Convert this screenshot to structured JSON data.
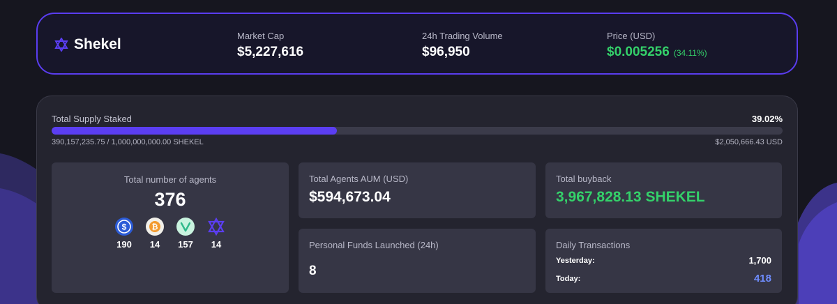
{
  "header": {
    "brand_name": "Shekel",
    "market_cap": {
      "label": "Market Cap",
      "value": "$5,227,616"
    },
    "volume": {
      "label": "24h Trading Volume",
      "value": "$96,950"
    },
    "price": {
      "label": "Price (USD)",
      "value": "$0.005256",
      "change": "(34.11%)"
    }
  },
  "supply": {
    "label": "Total Supply Staked",
    "percent_text": "39.02%",
    "fill_fraction": 0.3902,
    "amount_text": "390,157,235.75 / 1,000,000,000.00 SHEKEL",
    "usd_text": "$2,050,666.43 USD"
  },
  "agents": {
    "label": "Total number of agents",
    "total": "376",
    "tokens": [
      {
        "icon": "usdc-icon",
        "count": "190"
      },
      {
        "icon": "bitcoin-icon",
        "count": "14"
      },
      {
        "icon": "virtual-token-icon",
        "count": "157"
      },
      {
        "icon": "shekel-star-icon",
        "count": "14"
      }
    ]
  },
  "aum": {
    "label": "Total Agents AUM (USD)",
    "value": "$594,673.04"
  },
  "buyback": {
    "label": "Total buyback",
    "value": "3,967,828.13 SHEKEL"
  },
  "funds": {
    "label": "Personal Funds Launched (24h)",
    "value": "8"
  },
  "transactions": {
    "label": "Daily Transactions",
    "yesterday_label": "Yesterday:",
    "yesterday_value": "1,700",
    "today_label": "Today:",
    "today_value": "418"
  },
  "colors": {
    "accent": "#5b3ef2",
    "positive": "#34d16a",
    "today_blue": "#6f8dff"
  }
}
